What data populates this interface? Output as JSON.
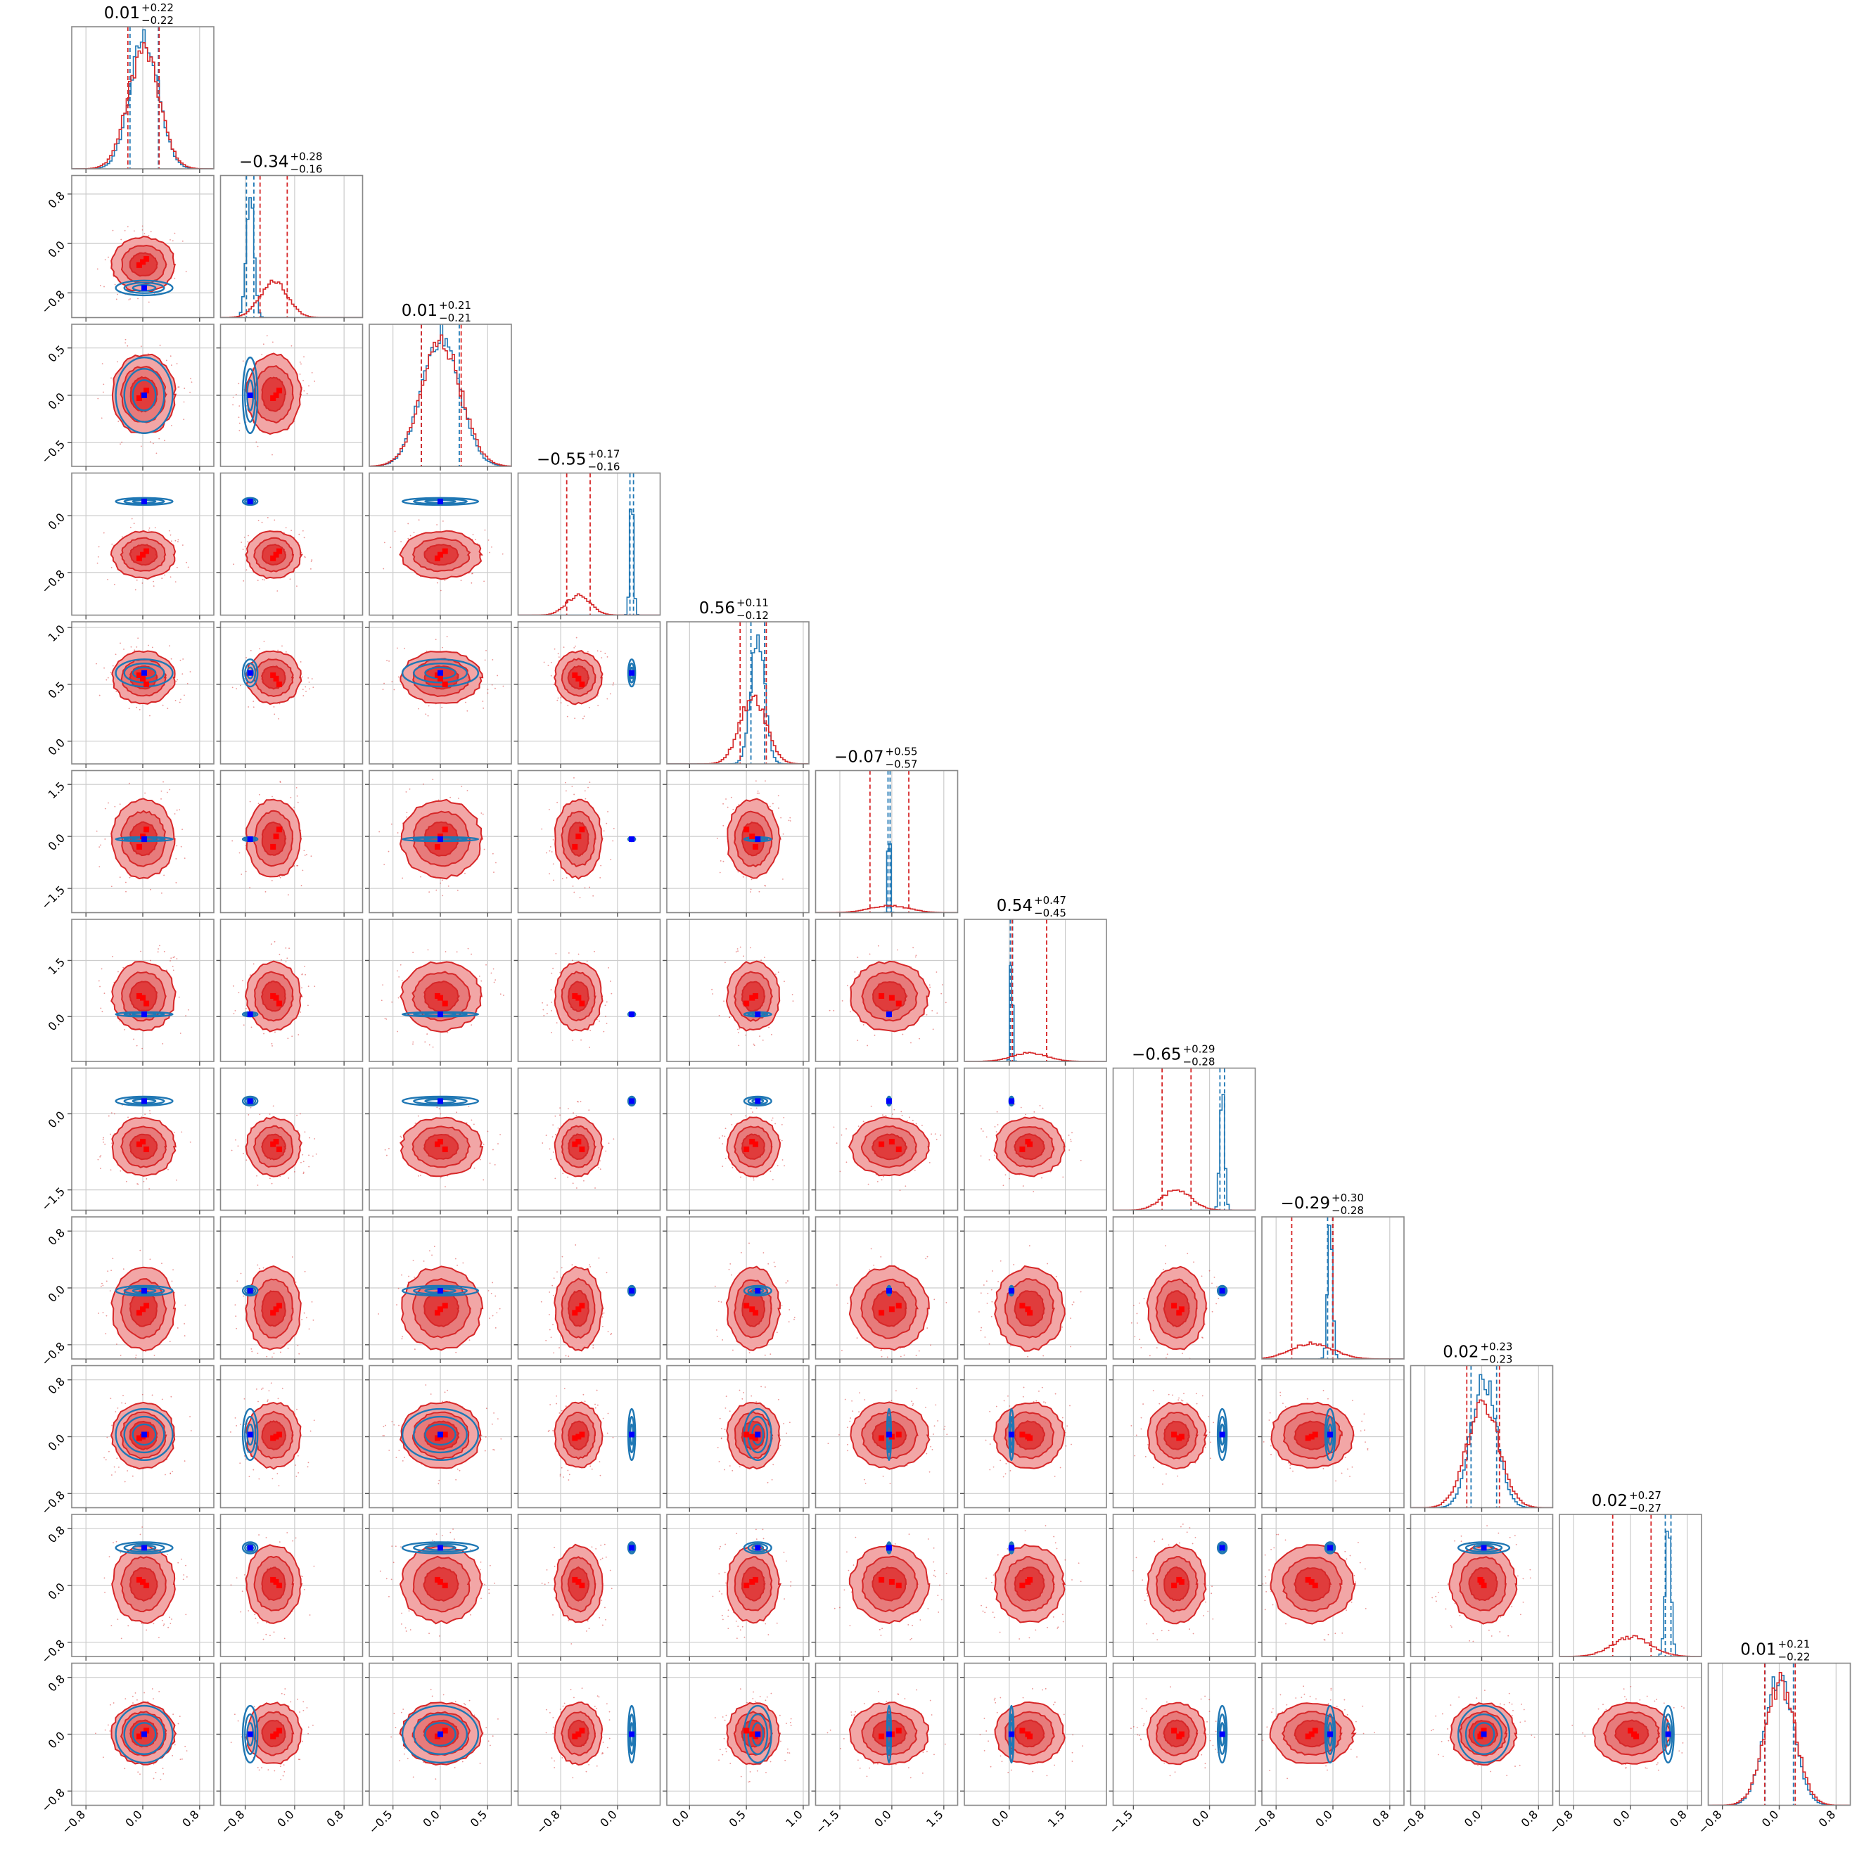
{
  "colors": {
    "blue": "#1f77b4",
    "red": "#d62728",
    "red_fill_outer": "#f2a6a6",
    "red_fill_inner": "#e03c3c",
    "truth_blue": "#0000ff",
    "truth_red": "#ff0000"
  },
  "chart_data": {
    "type": "corner",
    "n_params": 12,
    "title": "",
    "grid": true,
    "axes": [
      {
        "range": [
          -1.0,
          1.0
        ],
        "ticks": [
          -0.8,
          0.0,
          0.8
        ],
        "labels": [
          "−0.8",
          "0.0",
          "0.8"
        ]
      },
      {
        "range": [
          -1.2,
          1.1
        ],
        "ticks": [
          -0.8,
          0.0,
          0.8
        ],
        "labels": [
          "−0.8",
          "0.0",
          "0.8"
        ]
      },
      {
        "range": [
          -0.75,
          0.75
        ],
        "ticks": [
          -0.5,
          0.0,
          0.5
        ],
        "labels": [
          "−0.5",
          "0.0",
          "0.5"
        ]
      },
      {
        "range": [
          -1.4,
          0.6
        ],
        "ticks": [
          -0.8,
          0.0
        ],
        "labels": [
          "−0.8",
          "0.0"
        ]
      },
      {
        "range": [
          -0.2,
          1.05
        ],
        "ticks": [
          0.0,
          0.5,
          1.0
        ],
        "labels": [
          "0.0",
          "0.5",
          "1.0"
        ]
      },
      {
        "range": [
          -2.2,
          1.9
        ],
        "ticks": [
          -1.5,
          0.0,
          1.5
        ],
        "labels": [
          "−1.5",
          "0.0",
          "1.5"
        ]
      },
      {
        "range": [
          -1.2,
          2.6
        ],
        "ticks": [
          0.0,
          1.5
        ],
        "labels": [
          "0.0",
          "1.5"
        ]
      },
      {
        "range": [
          -1.9,
          0.9
        ],
        "ticks": [
          -1.5,
          0.0
        ],
        "labels": [
          "−1.5",
          "0.0"
        ]
      },
      {
        "range": [
          -1.0,
          1.0
        ],
        "ticks": [
          -0.8,
          0.0,
          0.8
        ],
        "labels": [
          "−0.8",
          "0.0",
          "0.8"
        ]
      },
      {
        "range": [
          -1.0,
          1.0
        ],
        "ticks": [
          -0.8,
          0.0,
          0.8
        ],
        "labels": [
          "−0.8",
          "0.0",
          "0.8"
        ]
      },
      {
        "range": [
          -1.0,
          1.0
        ],
        "ticks": [
          -0.8,
          0.0,
          0.8
        ],
        "labels": [
          "−0.8",
          "0.0",
          "0.8"
        ]
      },
      {
        "range": [
          -1.0,
          1.0
        ],
        "ticks": [
          -0.8,
          0.0,
          0.8
        ],
        "labels": [
          "−0.8",
          "0.0",
          "0.8"
        ]
      }
    ],
    "titles": [
      {
        "value": "0.01",
        "plus": "+0.22",
        "minus": "−0.22"
      },
      {
        "value": "−0.34",
        "plus": "+0.28",
        "minus": "−0.16"
      },
      {
        "value": "0.01",
        "plus": "+0.21",
        "minus": "−0.21"
      },
      {
        "value": "−0.55",
        "plus": "+0.17",
        "minus": "−0.16"
      },
      {
        "value": "0.56",
        "plus": "+0.11",
        "minus": "−0.12"
      },
      {
        "value": "−0.07",
        "plus": "+0.55",
        "minus": "−0.57"
      },
      {
        "value": "0.54",
        "plus": "+0.47",
        "minus": "−0.45"
      },
      {
        "value": "−0.65",
        "plus": "+0.29",
        "minus": "−0.28"
      },
      {
        "value": "−0.29",
        "plus": "+0.30",
        "minus": "−0.28"
      },
      {
        "value": "0.02",
        "plus": "+0.23",
        "minus": "−0.23"
      },
      {
        "value": "0.02",
        "plus": "+0.27",
        "minus": "−0.27"
      },
      {
        "value": "0.01",
        "plus": "+0.21",
        "minus": "−0.22"
      }
    ],
    "series": [
      {
        "color": "red",
        "filled_contours": true,
        "mean": [
          0.01,
          -0.34,
          0.01,
          -0.55,
          0.56,
          -0.07,
          0.54,
          -0.65,
          -0.29,
          0.02,
          0.02,
          0.01
        ],
        "sd": [
          0.22,
          0.22,
          0.21,
          0.165,
          0.115,
          0.56,
          0.46,
          0.285,
          0.29,
          0.23,
          0.27,
          0.215
        ]
      },
      {
        "color": "blue",
        "filled_contours": false,
        "mean": [
          0.02,
          -0.72,
          0.0,
          0.2,
          0.6,
          -0.08,
          0.06,
          0.25,
          -0.04,
          0.03,
          0.53,
          0.0
        ],
        "sd": [
          0.2,
          0.06,
          0.2,
          0.025,
          0.06,
          0.03,
          0.03,
          0.045,
          0.035,
          0.18,
          0.04,
          0.2
        ]
      }
    ],
    "truth_blue": [
      0.02,
      -0.72,
      0.0,
      0.2,
      0.6,
      -0.08,
      0.06,
      0.25,
      -0.04,
      0.03,
      0.53,
      0.0
    ],
    "truth_red_points": [
      [
        0.0,
        -0.3,
        0.0,
        -0.55,
        0.55,
        0.0,
        0.5,
        -0.55,
        -0.3,
        0.0,
        0.05,
        0.0
      ],
      [
        0.05,
        -0.25,
        0.05,
        -0.5,
        0.5,
        0.2,
        0.35,
        -0.7,
        -0.25,
        0.03,
        0.0,
        0.05
      ],
      [
        -0.05,
        -0.35,
        -0.03,
        -0.6,
        0.58,
        -0.3,
        0.55,
        -0.6,
        -0.35,
        -0.02,
        0.08,
        -0.03
      ]
    ]
  }
}
